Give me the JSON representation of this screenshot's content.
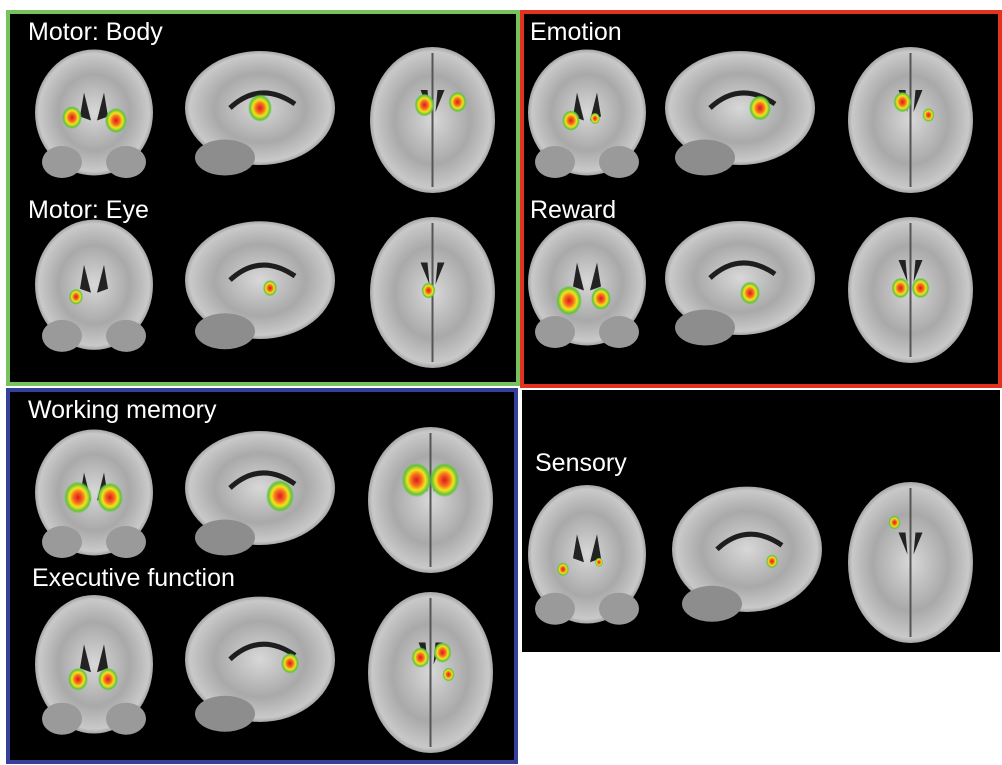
{
  "panels": [
    {
      "color": "#76c25d",
      "rows": [
        "Motor: Body",
        "Motor: Eye"
      ]
    },
    {
      "color": "#e3321f",
      "rows": [
        "Emotion",
        "Reward"
      ]
    },
    {
      "color": "#35409a",
      "rows": [
        "Working memory",
        "Executive function"
      ]
    },
    {
      "rows": [
        "Sensory"
      ]
    }
  ]
}
